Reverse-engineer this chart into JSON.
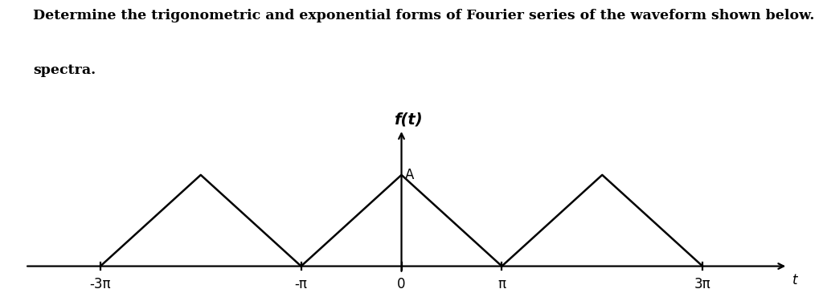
{
  "title_line1": "Determine the trigonometric and exponential forms of Fourier series of the waveform shown below.  Also, sketch the",
  "title_line2": "spectra.",
  "title_fontsize": 12.5,
  "title_color": "#000000",
  "background_color": "#ffffff",
  "ylabel": "f(t)",
  "xlabel": "t",
  "ylabel_fontsize": 14,
  "xlabel_fontsize": 12,
  "annotation_A": "A",
  "annotation_A_fontsize": 12,
  "wave_color": "#000000",
  "wave_linewidth": 1.8,
  "axis_linewidth": 1.6,
  "pi": 3.14159265358979,
  "x_tick_labels": [
    "-3π",
    "-π",
    "0",
    "π",
    "3π"
  ],
  "tick_fontsize": 12,
  "amplitude": 1.0,
  "x_axis_left": -3.75,
  "x_axis_right": 3.85,
  "y_axis_bottom": -0.08,
  "y_axis_top": 1.5,
  "y_min": -0.25,
  "y_max": 1.65
}
